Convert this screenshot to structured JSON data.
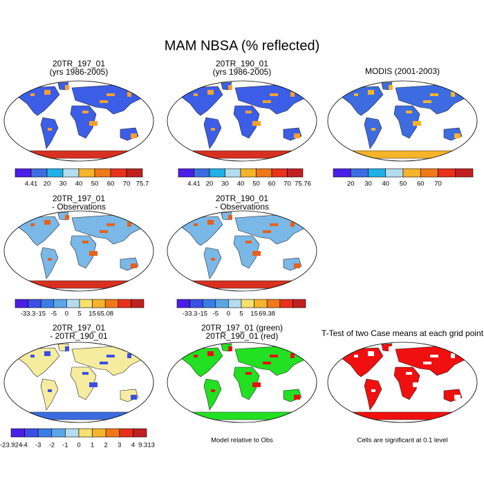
{
  "title": "MAM NBSA (% reflected)",
  "palettes": {
    "absolute": [
      "#4b1ee6",
      "#3c6ce0",
      "#1fb0e6",
      "#b4dcef",
      "#f5b42a",
      "#f07818",
      "#e8301a",
      "#c02020"
    ],
    "difference": [
      "#4b1ee6",
      "#3c4ee6",
      "#3c7ce6",
      "#5aa6e6",
      "#b4dcef",
      "#f5e070",
      "#f5b42a",
      "#f07818",
      "#e8301a",
      "#c02020"
    ]
  },
  "panels": [
    {
      "title": [
        "20TR_197_01",
        "(yrs 1986-2005)"
      ],
      "palette": "absolute",
      "colorbar": [
        4.41,
        20,
        30,
        40,
        50,
        60,
        70,
        75.7
      ]
    },
    {
      "title": [
        "20TR_190_01",
        "(yrs 1986-2005)"
      ],
      "palette": "absolute",
      "colorbar": [
        4.41,
        20,
        30,
        40,
        50,
        60,
        70,
        75.76
      ]
    },
    {
      "title": [
        "MODIS (2001-2003)"
      ],
      "palette": "absolute",
      "colorbar": [
        20,
        30,
        40,
        50,
        60,
        70
      ]
    },
    {
      "title": [
        "20TR_197_01",
        "- Observations"
      ],
      "palette": "difference",
      "colorbar": [
        -33.3,
        -15,
        -5,
        0,
        5,
        15,
        65.08
      ]
    },
    {
      "title": [
        "20TR_190_01",
        "- Observations"
      ],
      "palette": "difference",
      "colorbar": [
        -33.3,
        -15,
        -5,
        0,
        5,
        15,
        69.38
      ]
    },
    {
      "title": [
        "20TR_197_01",
        "- 20TR_190_01"
      ],
      "palette": "difference",
      "colorbar": [
        -23.924,
        -4,
        -3,
        -2,
        -1,
        0,
        1,
        2,
        3,
        4,
        9.313
      ]
    },
    {
      "title": [
        "20TR_197_01 (green)",
        "20TR_190_01 (red)"
      ],
      "note": "Model relative to Obs"
    },
    {
      "title": [
        "T-Test of two Case means at each grid point"
      ],
      "note": "Cells are significant at 0.1 level"
    }
  ]
}
